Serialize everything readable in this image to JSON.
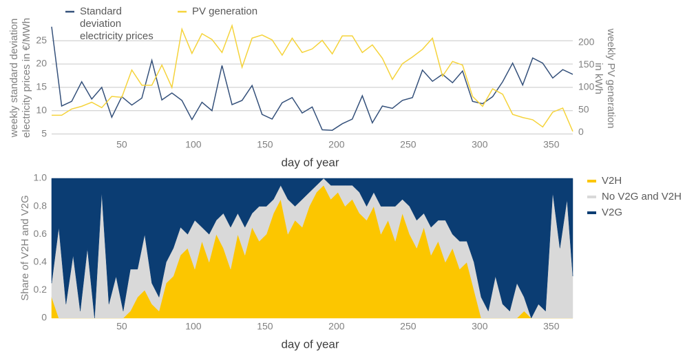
{
  "chart_data": [
    {
      "type": "line",
      "xlabel": "day of year",
      "ylabel": "weekly standard deviation electricity prices in €/MWh",
      "y2label": "weekly PV generation in kWh",
      "legend": "top",
      "grid": true,
      "xlim": [
        1,
        365
      ],
      "xticks": [
        50,
        100,
        150,
        200,
        250,
        300,
        350
      ],
      "ylim": [
        4.5,
        29.3
      ],
      "yticks": [
        5,
        10,
        15,
        20,
        25
      ],
      "y2lim": [
        -9,
        249
      ],
      "y2ticks": [
        0,
        50,
        100,
        150,
        200
      ],
      "x": [
        1,
        8,
        15,
        22,
        29,
        36,
        43,
        50,
        57,
        64,
        71,
        78,
        85,
        92,
        99,
        106,
        113,
        120,
        127,
        134,
        141,
        148,
        155,
        162,
        169,
        176,
        183,
        190,
        197,
        204,
        211,
        218,
        225,
        232,
        239,
        246,
        253,
        260,
        267,
        274,
        281,
        288,
        295,
        302,
        309,
        316,
        323,
        330,
        337,
        344,
        351,
        358,
        365
      ],
      "series": [
        {
          "name": "Standard deviation electricity prices",
          "color": "#34507a",
          "axis": "y",
          "values": [
            28,
            11,
            12,
            16.2,
            12.5,
            15,
            8.6,
            13,
            11.2,
            12.7,
            20.8,
            12.3,
            13.8,
            12.2,
            8.1,
            11.8,
            10,
            19.7,
            11.3,
            12.2,
            15.4,
            9.2,
            8.2,
            11.7,
            12.8,
            9.5,
            10.8,
            5.9,
            5.8,
            7.2,
            8.2,
            13.2,
            7.4,
            11,
            10.5,
            12.2,
            12.8,
            18.7,
            16.3,
            17.8,
            16,
            18.5,
            12,
            11.5,
            13,
            16.2,
            20.2,
            15.5,
            21.3,
            20.2,
            17,
            18.8,
            17.8
          ]
        },
        {
          "name": "PV generation",
          "color": "#f5d33a",
          "axis": "y2",
          "values": [
            38,
            38,
            52,
            58,
            67,
            55,
            80,
            78,
            139,
            105,
            105,
            150,
            100,
            230,
            176,
            220,
            207,
            178,
            238,
            145,
            210,
            217,
            206,
            172,
            210,
            178,
            186,
            205,
            175,
            215,
            215,
            178,
            195,
            165,
            118,
            153,
            168,
            185,
            210,
            125,
            158,
            150,
            80,
            58,
            97,
            85,
            40,
            33,
            28,
            12,
            45,
            54,
            2
          ]
        }
      ]
    },
    {
      "type": "area",
      "xlabel": "day of year",
      "ylabel": "Share of V2H and V2G",
      "legend": "right",
      "grid": false,
      "xlim": [
        1,
        365
      ],
      "xticks": [
        50,
        100,
        150,
        200,
        250,
        300,
        350
      ],
      "ylim": [
        0,
        1
      ],
      "yticks": [
        0,
        0.2,
        0.4,
        0.6,
        0.8,
        {
          "value": 1,
          "label": "1.0"
        }
      ],
      "x": [
        1,
        6,
        11,
        16,
        21,
        26,
        31,
        36,
        41,
        46,
        51,
        56,
        61,
        66,
        71,
        76,
        81,
        86,
        91,
        96,
        101,
        106,
        111,
        116,
        121,
        126,
        131,
        136,
        141,
        146,
        151,
        156,
        161,
        166,
        171,
        176,
        181,
        186,
        191,
        196,
        201,
        206,
        211,
        216,
        221,
        226,
        231,
        236,
        241,
        246,
        251,
        256,
        261,
        266,
        271,
        276,
        281,
        286,
        291,
        296,
        301,
        306,
        311,
        316,
        321,
        326,
        331,
        336,
        341,
        346,
        351,
        356,
        361,
        365
      ],
      "series": [
        {
          "name": "V2H",
          "color": "#fcc600",
          "values": [
            0.15,
            0,
            0,
            0,
            0,
            0,
            0,
            0,
            0,
            0,
            0,
            0.05,
            0.15,
            0.2,
            0.1,
            0.05,
            0.25,
            0.3,
            0.45,
            0.5,
            0.35,
            0.55,
            0.4,
            0.6,
            0.5,
            0.35,
            0.6,
            0.45,
            0.65,
            0.55,
            0.6,
            0.75,
            0.85,
            0.6,
            0.7,
            0.65,
            0.8,
            0.9,
            0.95,
            0.85,
            0.9,
            0.8,
            0.85,
            0.75,
            0.7,
            0.8,
            0.6,
            0.7,
            0.55,
            0.75,
            0.6,
            0.5,
            0.65,
            0.45,
            0.55,
            0.4,
            0.5,
            0.35,
            0.4,
            0.2,
            0,
            0,
            0,
            0,
            0,
            0,
            0.05,
            0,
            0,
            0,
            0,
            0,
            0,
            0
          ]
        },
        {
          "name": "No V2G and V2H",
          "color": "#d9d9d9",
          "values": [
            0.1,
            0.65,
            0.1,
            0.45,
            0.05,
            0.5,
            0,
            0.9,
            0.1,
            0.3,
            0.05,
            0.3,
            0.2,
            0.4,
            0.15,
            0.1,
            0.15,
            0.2,
            0.2,
            0.1,
            0.35,
            0.1,
            0.2,
            0.1,
            0.25,
            0.3,
            0.15,
            0.2,
            0.1,
            0.25,
            0.2,
            0.1,
            0.1,
            0.25,
            0.1,
            0.2,
            0.1,
            0.05,
            0.05,
            0.1,
            0.05,
            0.15,
            0.1,
            0.15,
            0.1,
            0.1,
            0.2,
            0.1,
            0.25,
            0.1,
            0.2,
            0.2,
            0.1,
            0.2,
            0.15,
            0.3,
            0.1,
            0.2,
            0.15,
            0.2,
            0.15,
            0.05,
            0.3,
            0.1,
            0.05,
            0.25,
            0.1,
            0,
            0.1,
            0.05,
            0.9,
            0.5,
            0.85,
            0.3
          ]
        },
        {
          "name": "V2G",
          "color": "#0b3d73",
          "values": [
            0.75,
            0.35,
            0.9,
            0.55,
            0.95,
            0.5,
            1,
            0.1,
            0.9,
            0.7,
            0.95,
            0.65,
            0.65,
            0.4,
            0.75,
            0.85,
            0.6,
            0.5,
            0.35,
            0.4,
            0.3,
            0.35,
            0.4,
            0.3,
            0.25,
            0.35,
            0.25,
            0.35,
            0.25,
            0.2,
            0.2,
            0.15,
            0.05,
            0.15,
            0.2,
            0.15,
            0.1,
            0.05,
            0,
            0.05,
            0.05,
            0.05,
            0.05,
            0.1,
            0.2,
            0.1,
            0.2,
            0.2,
            0.2,
            0.15,
            0.2,
            0.3,
            0.25,
            0.35,
            0.3,
            0.3,
            0.4,
            0.45,
            0.45,
            0.6,
            0.85,
            0.95,
            0.7,
            0.9,
            0.95,
            0.75,
            0.85,
            1,
            0.9,
            0.95,
            0.1,
            0.5,
            0.15,
            0.7
          ]
        }
      ]
    }
  ]
}
